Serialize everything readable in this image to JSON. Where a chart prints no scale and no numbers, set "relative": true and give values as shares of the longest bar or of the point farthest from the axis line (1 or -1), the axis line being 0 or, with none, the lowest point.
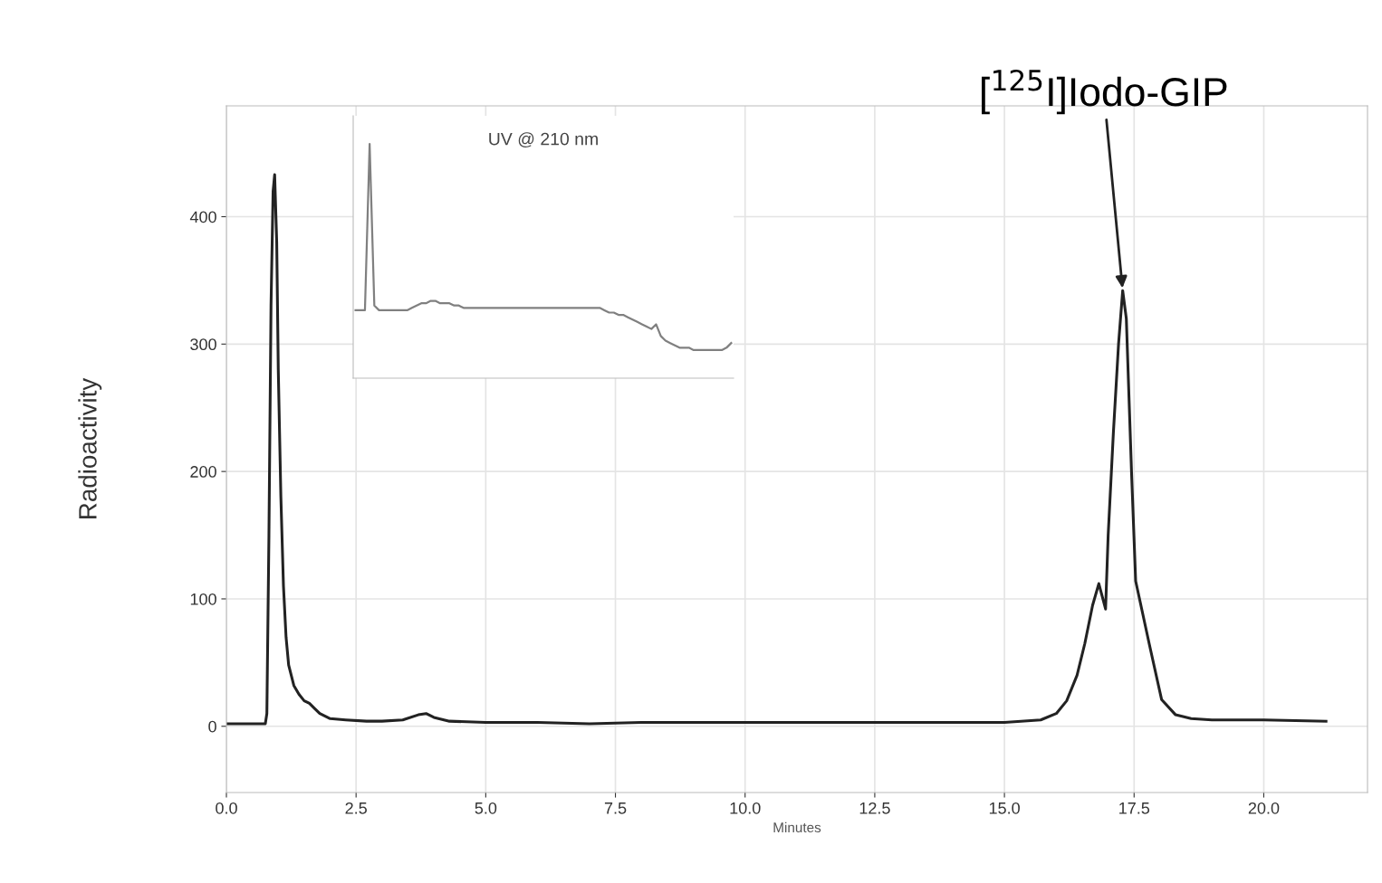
{
  "chart_data": [
    {
      "type": "line",
      "xlabel": "Minutes",
      "ylabel": "Radioactivity",
      "grid": true,
      "line_style": "solid",
      "xlim": [
        0,
        22
      ],
      "ylim": [
        -52,
        487
      ],
      "xticks": [
        {
          "value": 0,
          "label": "0.0"
        },
        {
          "value": 2.5,
          "label": "2.5"
        },
        {
          "value": 5,
          "label": "5.0"
        },
        {
          "value": 7.5,
          "label": "7.5"
        },
        {
          "value": 10,
          "label": "10.0"
        },
        {
          "value": 12.5,
          "label": "12.5"
        },
        {
          "value": 15,
          "label": "15.0"
        },
        {
          "value": 17.5,
          "label": "17.5"
        },
        {
          "value": 20,
          "label": "20.0"
        }
      ],
      "yticks": [
        0,
        100,
        200,
        300,
        400
      ],
      "annotations": [
        {
          "text": "[$^{125}$I]Iodo-GIP",
          "x": 17.28,
          "y": 342
        }
      ],
      "series": [
        {
          "color": "#222222",
          "x": [
            0,
            0.75,
            0.78,
            0.82,
            0.86,
            0.9,
            0.93,
            0.97,
            1.0,
            1.05,
            1.1,
            1.15,
            1.2,
            1.3,
            1.4,
            1.5,
            1.6,
            1.7,
            1.8,
            2.0,
            2.3,
            2.7,
            3.0,
            3.4,
            3.7,
            3.85,
            4.0,
            4.3,
            5.0,
            6,
            7,
            8,
            9,
            10,
            11,
            12,
            13,
            14,
            15,
            15.7,
            16.0,
            16.2,
            16.4,
            16.55,
            16.7,
            16.82,
            16.95,
            17.0,
            17.1,
            17.2,
            17.28,
            17.35,
            17.45,
            17.53,
            17.79,
            18.03,
            18.3,
            18.6,
            19.0,
            20,
            21.2
          ],
          "values": [
            2,
            2,
            10,
            150,
            330,
            420,
            433,
            380,
            280,
            180,
            110,
            70,
            48,
            32,
            25,
            20,
            18,
            14,
            10,
            6,
            5,
            4,
            4,
            5,
            9,
            10,
            7,
            4,
            3,
            3,
            2,
            3,
            3,
            3,
            3,
            3,
            3,
            3,
            3,
            5,
            10,
            20,
            40,
            65,
            95,
            112,
            92,
            150,
            230,
            300,
            342,
            320,
            200,
            114,
            65,
            21,
            9,
            6,
            5,
            5,
            4
          ]
        }
      ]
    },
    {
      "type": "line",
      "title": "UV @ 210 nm",
      "relative": true,
      "line_style": "solid",
      "categories": [
        null,
        null,
        null,
        null,
        null,
        null,
        null,
        null,
        null,
        null,
        null,
        null,
        null,
        null,
        null,
        null,
        null,
        null,
        null,
        null,
        null,
        null,
        null,
        null,
        null,
        null,
        null,
        null,
        null,
        null,
        null,
        null,
        null,
        null,
        null,
        null,
        null,
        null,
        null,
        null,
        null,
        null,
        null,
        null,
        null,
        null,
        null,
        null,
        null,
        null,
        null,
        null,
        null,
        null,
        null,
        null,
        null,
        null,
        null,
        null,
        null,
        null,
        null,
        null,
        null,
        null,
        null,
        null,
        null,
        null,
        null,
        null,
        null,
        null,
        null,
        null,
        null,
        null,
        null,
        null,
        null
      ],
      "series": [
        {
          "color": "#808080",
          "values": [
            0.29,
            0.29,
            0.29,
            1.0,
            0.31,
            0.29,
            0.29,
            0.29,
            0.29,
            0.29,
            0.29,
            0.29,
            0.3,
            0.31,
            0.32,
            0.32,
            0.33,
            0.33,
            0.32,
            0.32,
            0.32,
            0.31,
            0.31,
            0.3,
            0.3,
            0.3,
            0.3,
            0.3,
            0.3,
            0.3,
            0.3,
            0.3,
            0.3,
            0.3,
            0.3,
            0.3,
            0.3,
            0.3,
            0.3,
            0.3,
            0.3,
            0.3,
            0.3,
            0.3,
            0.3,
            0.3,
            0.3,
            0.3,
            0.3,
            0.3,
            0.3,
            0.3,
            0.3,
            0.29,
            0.28,
            0.28,
            0.27,
            0.27,
            0.26,
            0.25,
            0.24,
            0.23,
            0.22,
            0.21,
            0.23,
            0.18,
            0.16,
            0.15,
            0.14,
            0.13,
            0.13,
            0.13,
            0.12,
            0.12,
            0.12,
            0.12,
            0.12,
            0.12,
            0.12,
            0.13,
            0.15
          ]
        }
      ]
    }
  ]
}
